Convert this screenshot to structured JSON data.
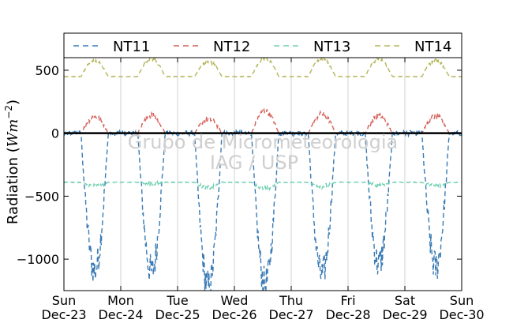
{
  "chart_data": {
    "type": "line",
    "ylabel": "Radiation (Wm⁻²)",
    "ylabel_main": "Radiation (",
    "ylabel_unit": "Wm",
    "ylabel_exp": "−2",
    "ylabel_close": ")",
    "ylim": [
      -1250,
      600
    ],
    "yticks": [
      500,
      0,
      -500,
      -1000
    ],
    "ytick_labels": [
      "500",
      "0",
      "−500",
      "−1000"
    ],
    "xlim": [
      0,
      7
    ],
    "xticks": [
      {
        "pos": 0,
        "day": "Sun",
        "date": "Dec-23"
      },
      {
        "pos": 1,
        "day": "Mon",
        "date": "Dec-24"
      },
      {
        "pos": 2,
        "day": "Tue",
        "date": "Dec-25"
      },
      {
        "pos": 3,
        "day": "Wed",
        "date": "Dec-26"
      },
      {
        "pos": 4,
        "day": "Thu",
        "date": "Dec-27"
      },
      {
        "pos": 5,
        "day": "Fri",
        "date": "Dec-28"
      },
      {
        "pos": 6,
        "day": "Sat",
        "date": "Dec-29"
      },
      {
        "pos": 7,
        "day": "Sun",
        "date": "Dec-30"
      }
    ],
    "grid": "vertical",
    "legend_position": "top",
    "zero_line": true,
    "watermark": [
      "Grupo de Micrometeorologia",
      "IAG / USP"
    ],
    "series": [
      {
        "name": "NT11",
        "color": "#3a7bb5",
        "style": "dashed",
        "night": 0,
        "peaks": [
          -1090,
          -1100,
          -1220,
          -1200,
          -1130,
          -1040,
          -1060
        ],
        "jitter": 140
      },
      {
        "name": "NT12",
        "color": "#d4605a",
        "style": "dashed",
        "night": 0,
        "peaks": [
          130,
          140,
          110,
          175,
          150,
          135,
          135
        ],
        "jitter": 25
      },
      {
        "name": "NT13",
        "color": "#6fcfb0",
        "style": "dashed",
        "night": -390,
        "peaks": [
          -420,
          -400,
          -430,
          -440,
          -420,
          -410,
          -420
        ],
        "jitter": 20
      },
      {
        "name": "NT14",
        "color": "#b5b55a",
        "style": "dashed",
        "night": 450,
        "peaks": [
          575,
          590,
          570,
          595,
          590,
          585,
          580
        ],
        "jitter": 15
      }
    ]
  }
}
